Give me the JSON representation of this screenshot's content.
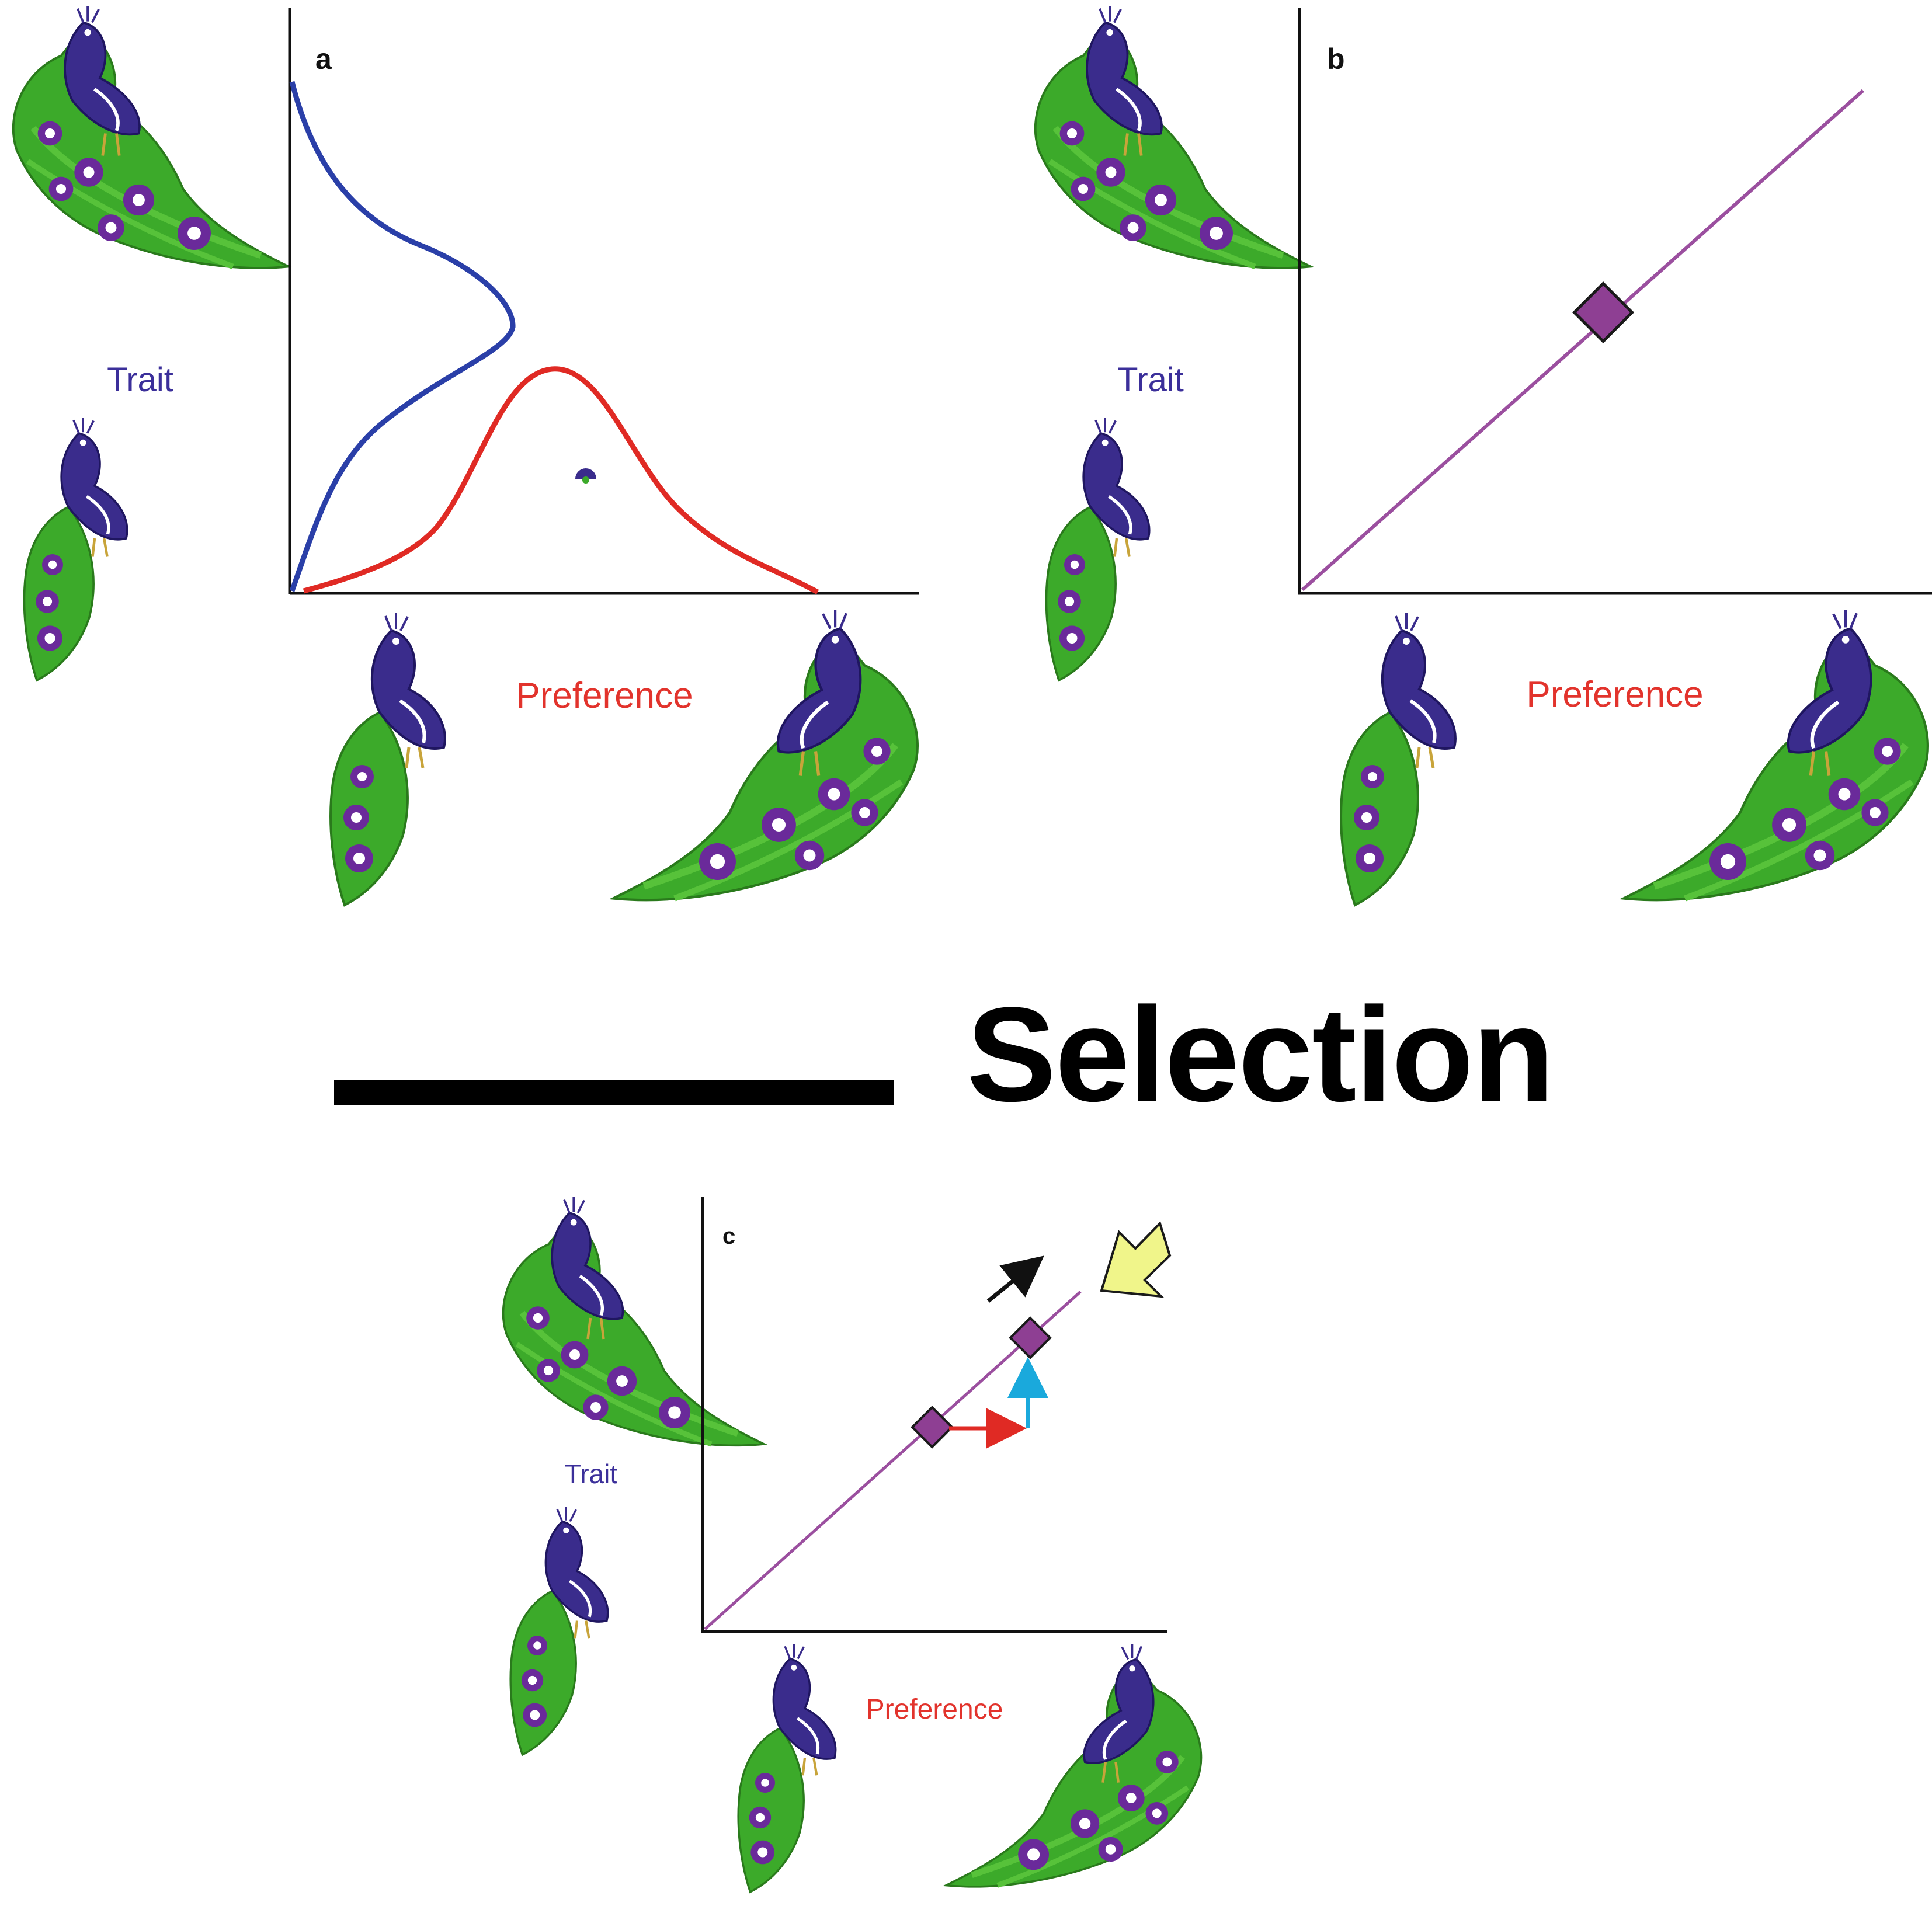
{
  "figure": {
    "title": "Selection",
    "panels": [
      {
        "letter": "a",
        "y_label": "Trait",
        "x_label": "Preference"
      },
      {
        "letter": "b",
        "y_label": "Trait",
        "x_label": "Preference"
      },
      {
        "letter": "c",
        "y_label": "Trait",
        "x_label": "Preference"
      }
    ]
  },
  "colors": {
    "trait": "#3b2f9a",
    "preference": "#e2332c",
    "trait_curve": "#2a3fa8",
    "preference_curve": "#e02a24",
    "correlation_line": "#9b4f9f",
    "diamond": "#8e3f93",
    "red_arrow": "#e02a24",
    "blue_arrow": "#1aa9dc",
    "black_arrow": "#111111",
    "selection_arrow": "#f0f58a",
    "peacock_body": "#3a2c8c",
    "peacock_tail": "#3caa2a",
    "peacock_eye": "#6a2a9a"
  },
  "icons": [
    "peacock-long-tail-icon",
    "peacock-short-tail-icon",
    "small-peacock-glyph-icon",
    "yellow-selection-arrow-icon"
  ]
}
